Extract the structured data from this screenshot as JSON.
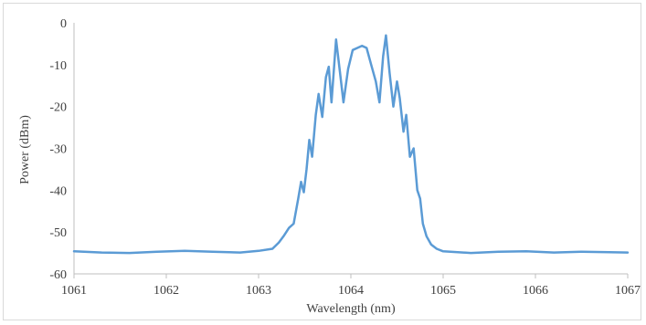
{
  "chart_data": {
    "type": "line",
    "title": "",
    "xlabel": "Wavelength (nm)",
    "ylabel": "Power (dBm)",
    "xlim": [
      1061,
      1067
    ],
    "ylim": [
      -60,
      0
    ],
    "x_ticks": [
      1061,
      1062,
      1063,
      1064,
      1065,
      1066,
      1067
    ],
    "y_ticks": [
      0,
      -10,
      -20,
      -30,
      -40,
      -50,
      -60
    ],
    "grid": false,
    "legend": "none",
    "series": [
      {
        "color": "#5b9bd5",
        "points": [
          [
            1061.0,
            -54.6
          ],
          [
            1061.3,
            -54.9
          ],
          [
            1061.6,
            -55.0
          ],
          [
            1061.9,
            -54.7
          ],
          [
            1062.2,
            -54.5
          ],
          [
            1062.5,
            -54.7
          ],
          [
            1062.8,
            -54.9
          ],
          [
            1063.0,
            -54.5
          ],
          [
            1063.15,
            -54.0
          ],
          [
            1063.22,
            -52.5
          ],
          [
            1063.27,
            -51.0
          ],
          [
            1063.33,
            -49.0
          ],
          [
            1063.38,
            -48.0
          ],
          [
            1063.43,
            -42.0
          ],
          [
            1063.46,
            -38.0
          ],
          [
            1063.49,
            -40.5
          ],
          [
            1063.52,
            -35.0
          ],
          [
            1063.55,
            -28.0
          ],
          [
            1063.58,
            -32.0
          ],
          [
            1063.62,
            -22.0
          ],
          [
            1063.65,
            -17.0
          ],
          [
            1063.69,
            -22.5
          ],
          [
            1063.73,
            -13.0
          ],
          [
            1063.76,
            -10.5
          ],
          [
            1063.79,
            -19.0
          ],
          [
            1063.84,
            -4.0
          ],
          [
            1063.88,
            -11.5
          ],
          [
            1063.92,
            -19.0
          ],
          [
            1063.97,
            -11.0
          ],
          [
            1064.02,
            -6.5
          ],
          [
            1064.07,
            -6.0
          ],
          [
            1064.12,
            -5.5
          ],
          [
            1064.17,
            -6.0
          ],
          [
            1064.22,
            -10.0
          ],
          [
            1064.27,
            -14.0
          ],
          [
            1064.31,
            -19.0
          ],
          [
            1064.35,
            -8.0
          ],
          [
            1064.38,
            -3.0
          ],
          [
            1064.42,
            -12.0
          ],
          [
            1064.46,
            -20.0
          ],
          [
            1064.5,
            -14.0
          ],
          [
            1064.53,
            -18.0
          ],
          [
            1064.57,
            -26.0
          ],
          [
            1064.6,
            -22.0
          ],
          [
            1064.64,
            -32.0
          ],
          [
            1064.68,
            -30.0
          ],
          [
            1064.72,
            -40.0
          ],
          [
            1064.75,
            -42.0
          ],
          [
            1064.78,
            -48.0
          ],
          [
            1064.82,
            -51.0
          ],
          [
            1064.87,
            -53.0
          ],
          [
            1064.93,
            -54.0
          ],
          [
            1065.0,
            -54.6
          ],
          [
            1065.3,
            -55.0
          ],
          [
            1065.6,
            -54.7
          ],
          [
            1065.9,
            -54.6
          ],
          [
            1066.2,
            -54.9
          ],
          [
            1066.5,
            -54.7
          ],
          [
            1066.8,
            -54.8
          ],
          [
            1067.0,
            -54.9
          ]
        ]
      }
    ]
  }
}
